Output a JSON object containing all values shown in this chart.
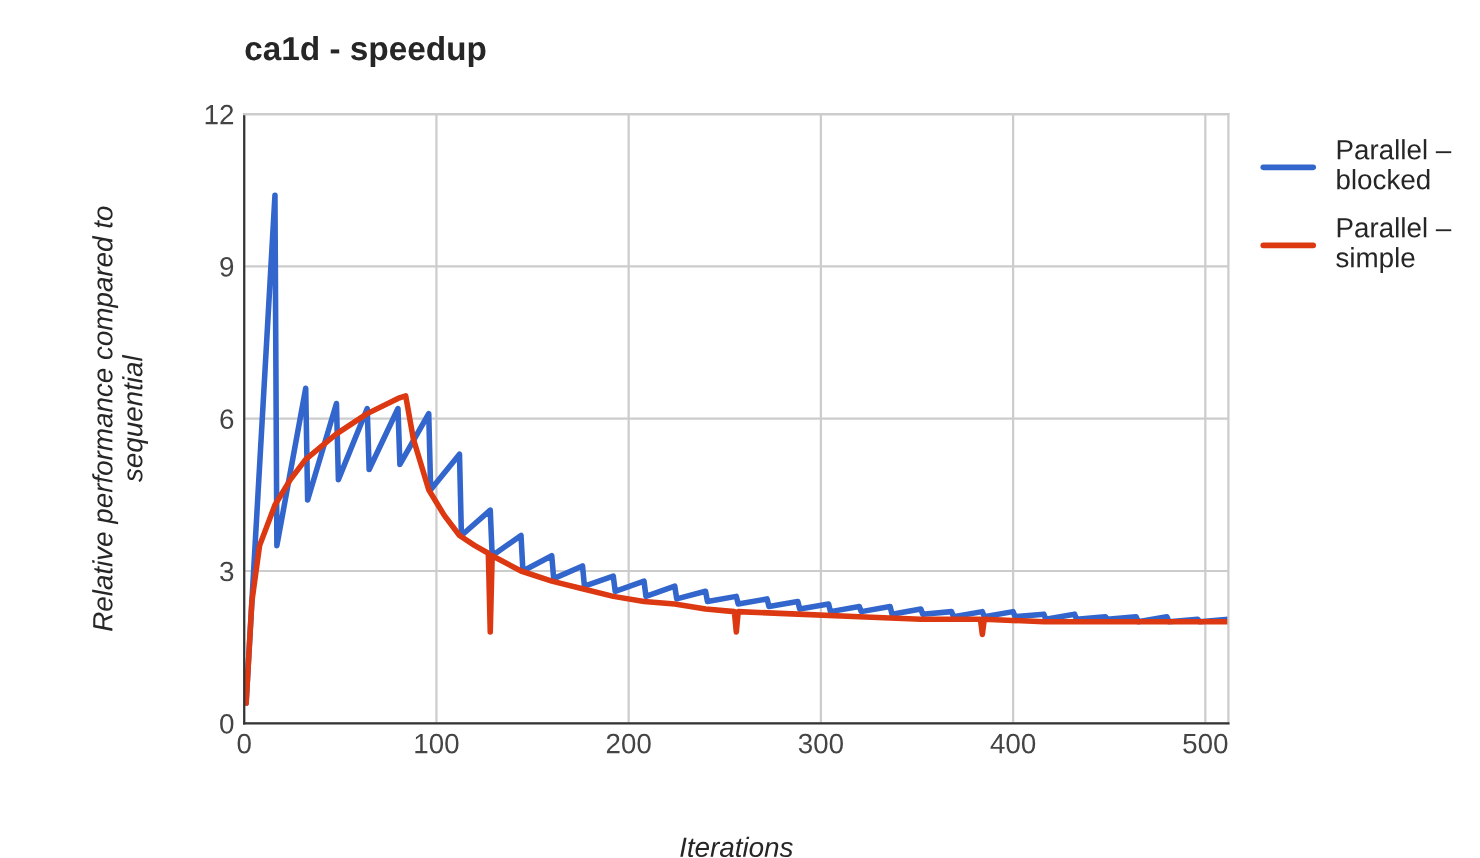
{
  "chart_data": {
    "type": "line",
    "title": "ca1d - speedup",
    "xlabel": "Iterations",
    "ylabel": "Relative performance compared to\nsequential",
    "xlim": [
      0,
      512
    ],
    "xticks": [
      0,
      100,
      200,
      300,
      400,
      500
    ],
    "ylim": [
      0,
      12
    ],
    "yticks": [
      0,
      3,
      6,
      9,
      12
    ],
    "grid": true,
    "legend": "top right",
    "marker": "none",
    "line_style": "solid",
    "series": [
      {
        "name": "Parallel –\nblocked",
        "color": "#3366cc",
        "x": [
          1,
          16,
          17,
          32,
          33,
          48,
          49,
          64,
          65,
          80,
          81,
          96,
          97,
          112,
          113,
          128,
          129,
          144,
          145,
          160,
          161,
          176,
          177,
          192,
          193,
          208,
          209,
          224,
          225,
          240,
          241,
          256,
          257,
          272,
          273,
          288,
          289,
          304,
          305,
          320,
          321,
          336,
          337,
          352,
          353,
          368,
          369,
          384,
          385,
          400,
          401,
          416,
          417,
          432,
          433,
          448,
          449,
          464,
          465,
          480,
          481,
          496,
          497,
          512
        ],
        "values": [
          0.4,
          10.4,
          3.5,
          6.6,
          4.4,
          6.3,
          4.8,
          6.2,
          5.0,
          6.2,
          5.1,
          6.1,
          4.6,
          5.3,
          3.7,
          4.2,
          3.3,
          3.7,
          3.0,
          3.3,
          2.85,
          3.1,
          2.7,
          2.9,
          2.6,
          2.8,
          2.5,
          2.7,
          2.45,
          2.6,
          2.4,
          2.5,
          2.35,
          2.45,
          2.3,
          2.4,
          2.25,
          2.35,
          2.2,
          2.3,
          2.2,
          2.3,
          2.15,
          2.25,
          2.15,
          2.2,
          2.1,
          2.2,
          2.1,
          2.2,
          2.1,
          2.15,
          2.05,
          2.15,
          2.05,
          2.1,
          2.05,
          2.1,
          2.0,
          2.1,
          2.0,
          2.05,
          2.0,
          2.05
        ]
      },
      {
        "name": "Parallel –\nsimple",
        "color": "#dc3912",
        "x": [
          1,
          4,
          8,
          16,
          24,
          32,
          48,
          64,
          80,
          84,
          88,
          96,
          104,
          112,
          120,
          127,
          128,
          129,
          144,
          160,
          176,
          192,
          208,
          224,
          240,
          255,
          256,
          257,
          288,
          320,
          352,
          383,
          384,
          385,
          416,
          448,
          480,
          512
        ],
        "values": [
          0.4,
          2.4,
          3.5,
          4.3,
          4.8,
          5.2,
          5.7,
          6.1,
          6.4,
          6.45,
          5.6,
          4.6,
          4.1,
          3.7,
          3.5,
          3.35,
          1.8,
          3.3,
          3.0,
          2.8,
          2.65,
          2.5,
          2.4,
          2.35,
          2.25,
          2.2,
          1.8,
          2.2,
          2.15,
          2.1,
          2.05,
          2.05,
          1.75,
          2.05,
          2.0,
          2.0,
          2.0,
          2.0
        ]
      }
    ]
  }
}
